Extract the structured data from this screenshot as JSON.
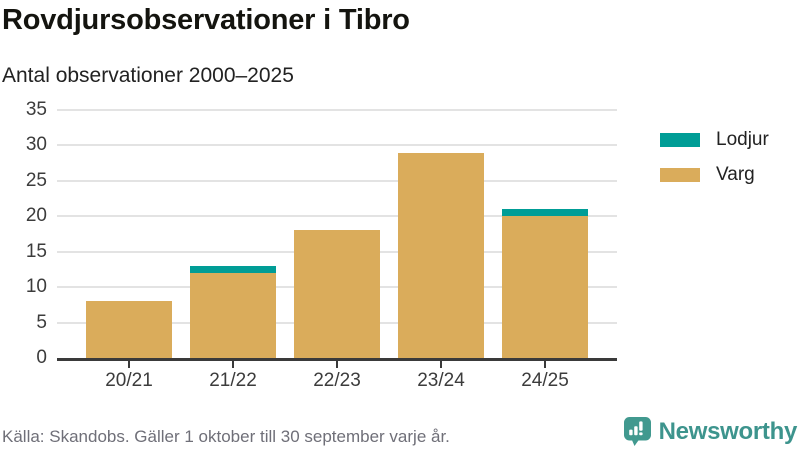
{
  "header": {
    "title": "Rovdjursobservationer i Tibro",
    "subtitle": "Antal observationer 2000–2025"
  },
  "legend": [
    {
      "label": "Lodjur",
      "color": "#009d96"
    },
    {
      "label": "Varg",
      "color": "#daac5b"
    }
  ],
  "chart_data": {
    "type": "bar",
    "stacked": true,
    "title": "Rovdjursobservationer i Tibro",
    "subtitle": "Antal observationer 2000–2025",
    "categories": [
      "20/21",
      "21/22",
      "22/23",
      "23/24",
      "24/25"
    ],
    "series": [
      {
        "name": "Varg",
        "color": "#daac5b",
        "values": [
          8,
          12,
          18,
          29,
          20
        ]
      },
      {
        "name": "Lodjur",
        "color": "#009d96",
        "values": [
          0,
          1,
          0,
          0,
          1
        ]
      }
    ],
    "totals": [
      8,
      13,
      18,
      29,
      21
    ],
    "xlabel": "",
    "ylabel": "",
    "ylim": [
      0,
      35
    ],
    "yticks": [
      0,
      5,
      10,
      15,
      20,
      25,
      30,
      35
    ],
    "grid": "horizontal",
    "legend_position": "right"
  },
  "footer": {
    "source": "Källa: Skandobs. Gäller 1 oktober till 30 september varje år.",
    "brand": "Newsworthy",
    "brand_color": "#3d948d"
  }
}
